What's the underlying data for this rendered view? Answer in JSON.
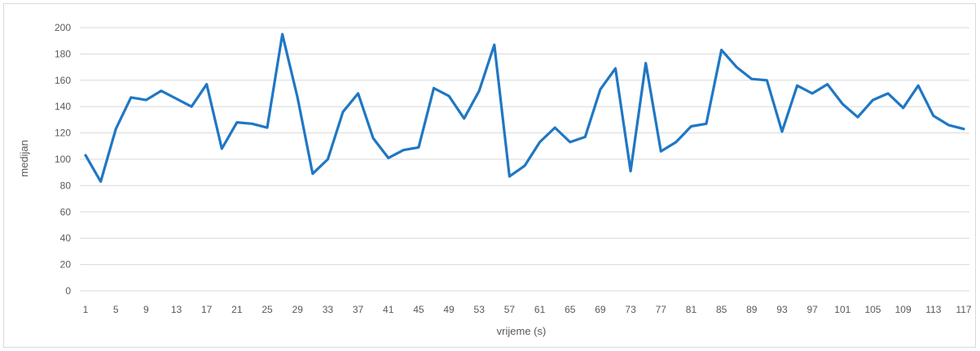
{
  "chart_data": {
    "type": "line",
    "xlabel": "vrijeme (s)",
    "ylabel": "medijan",
    "ylim": [
      0,
      200
    ],
    "yticks": [
      0,
      20,
      40,
      60,
      80,
      100,
      120,
      140,
      160,
      180,
      200
    ],
    "xtick_labels": [
      "1",
      "5",
      "9",
      "13",
      "17",
      "21",
      "25",
      "29",
      "33",
      "37",
      "41",
      "45",
      "49",
      "53",
      "57",
      "61",
      "65",
      "69",
      "73",
      "77",
      "81",
      "85",
      "89",
      "93",
      "97",
      "101",
      "105",
      "109",
      "113",
      "117"
    ],
    "grid": true,
    "legend": "none",
    "series": [
      {
        "color": "#1f77c4",
        "x": [
          1,
          3,
          5,
          7,
          9,
          11,
          13,
          15,
          17,
          19,
          21,
          23,
          25,
          27,
          29,
          31,
          33,
          35,
          37,
          39,
          41,
          43,
          45,
          47,
          49,
          51,
          53,
          55,
          57,
          59,
          61,
          63,
          65,
          67,
          69,
          71,
          73,
          75,
          77,
          79,
          81,
          83,
          85,
          87,
          89,
          91,
          93,
          95,
          97,
          99,
          101,
          103,
          105,
          107,
          109,
          111,
          113,
          115,
          117
        ],
        "values": [
          103,
          83,
          123,
          147,
          145,
          152,
          146,
          140,
          157,
          108,
          128,
          127,
          124,
          195,
          147,
          89,
          100,
          136,
          150,
          116,
          101,
          107,
          109,
          154,
          148,
          131,
          152,
          187,
          87,
          95,
          113,
          124,
          113,
          117,
          153,
          169,
          91,
          173,
          106,
          113,
          125,
          127,
          183,
          170,
          161,
          160,
          121,
          156,
          150,
          157,
          142,
          132,
          145,
          150,
          139,
          156,
          133,
          126,
          123
        ]
      }
    ]
  }
}
